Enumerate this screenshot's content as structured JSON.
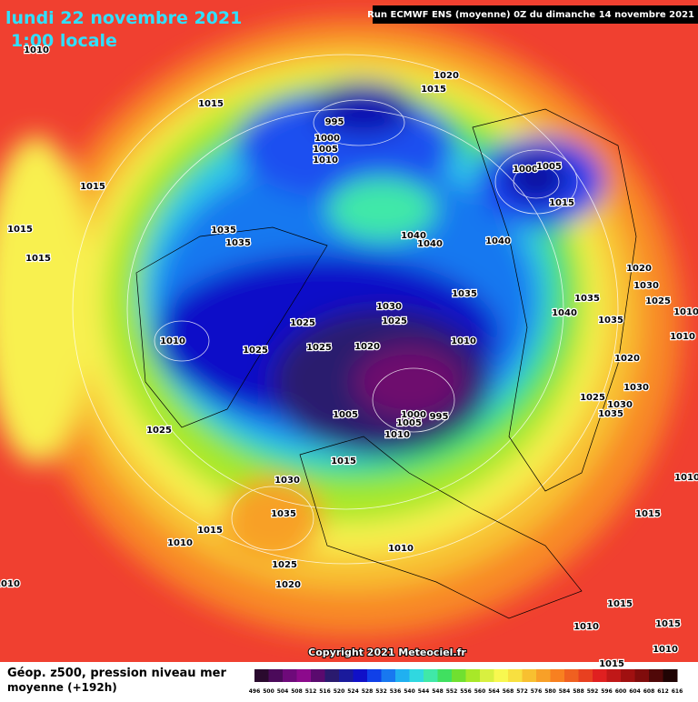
{
  "header": {
    "date": "lundi 22 novembre 2021",
    "time": "1:00 locale",
    "run": "Run ECMWF ENS (moyenne) 0Z du dimanche 14 novembre 2021"
  },
  "map": {
    "copyright": "Copyright 2021 Meteociel.fr",
    "pressure_labels": [
      1010,
      1015,
      1020,
      1015,
      995,
      1000,
      1005,
      1010,
      1000,
      1005,
      1015,
      1015,
      1015,
      1015,
      1035,
      1035,
      1040,
      1040,
      1040,
      1035,
      1020,
      1030,
      1025,
      1035,
      1040,
      1035,
      1010,
      1030,
      1025,
      1025,
      1010,
      1025,
      1025,
      1020,
      1010,
      1010,
      1020,
      1030,
      1025,
      1030,
      1035,
      1005,
      1000,
      1005,
      995,
      1010,
      1025,
      1015,
      1030,
      1010,
      1035,
      1015,
      1015,
      1010,
      1010,
      1025,
      1020,
      1010,
      1015,
      1010,
      1015,
      1010,
      1015
    ]
  },
  "legend": {
    "title": "Géop. z500, pression niveau mer",
    "subtitle": "moyenne  (+192h)",
    "ticks": [
      496,
      500,
      504,
      508,
      512,
      516,
      520,
      524,
      528,
      532,
      536,
      540,
      544,
      548,
      552,
      556,
      560,
      564,
      568,
      572,
      576,
      580,
      584,
      588,
      592,
      596,
      600,
      604,
      608,
      612,
      616
    ],
    "colors": [
      "#2a0a2e",
      "#4b0a5a",
      "#6e0a7a",
      "#8c0a8c",
      "#5a0a6e",
      "#2a1a6e",
      "#1a1a9c",
      "#1010c8",
      "#1040e8",
      "#1878f0",
      "#20b0f0",
      "#30d8e0",
      "#40e8a8",
      "#40e060",
      "#70e030",
      "#a8e828",
      "#d8f040",
      "#f8f850",
      "#f8e040",
      "#f8c030",
      "#f8a028",
      "#f88020",
      "#f06020",
      "#e84020",
      "#e02020",
      "#c01818",
      "#a01010",
      "#800c0c",
      "#500808",
      "#200404"
    ]
  }
}
